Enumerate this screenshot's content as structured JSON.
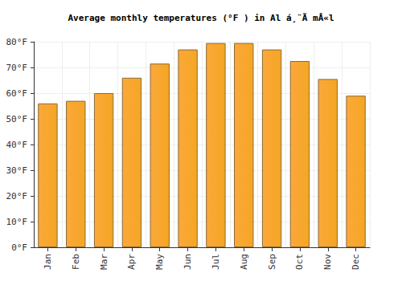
{
  "chart_data": {
    "type": "bar",
    "title": "Average monthly temperatures (°F ) in Al á¸¨Ã mÅ«l",
    "categories": [
      "Jan",
      "Feb",
      "Mar",
      "Apr",
      "May",
      "Jun",
      "Jul",
      "Aug",
      "Sep",
      "Oct",
      "Nov",
      "Dec"
    ],
    "values": [
      56,
      57,
      60,
      66,
      71.5,
      77,
      79.5,
      79.5,
      77,
      72.5,
      65.5,
      59
    ],
    "color": "#fba83a",
    "ylim": [
      0,
      80
    ],
    "yticks": [
      {
        "value": 0,
        "label": "0°F"
      },
      {
        "value": 10,
        "label": "10°F"
      },
      {
        "value": 20,
        "label": "20°F"
      },
      {
        "value": 30,
        "label": "30°F"
      },
      {
        "value": 40,
        "label": "40°F"
      },
      {
        "value": 50,
        "label": "50°F"
      },
      {
        "value": 60,
        "label": "60°F"
      },
      {
        "value": 70,
        "label": "70°F"
      },
      {
        "value": 80,
        "label": "80°F"
      }
    ],
    "grid": true
  }
}
